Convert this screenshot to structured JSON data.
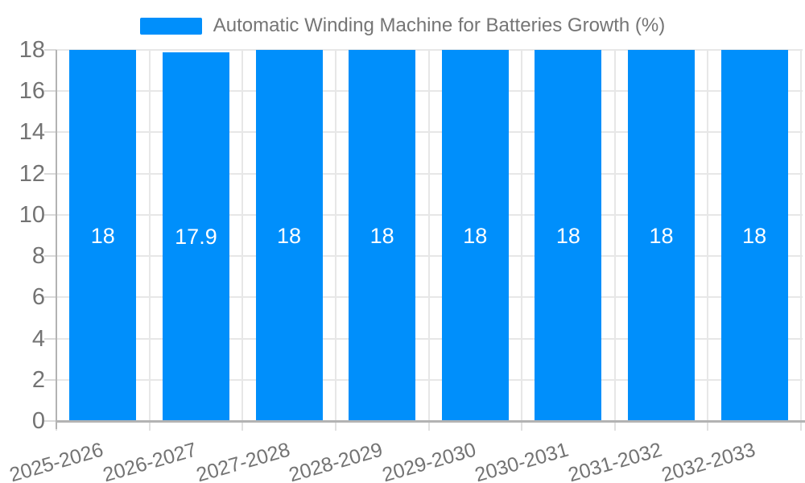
{
  "legend": {
    "label": "Automatic Winding Machine for Batteries Growth (%)",
    "marker": "bar-color-swatch-icon"
  },
  "chart_data": {
    "type": "bar",
    "title": "Automatic Winding Machine for Batteries Growth (%)",
    "xlabel": "",
    "ylabel": "",
    "categories": [
      "2025-2026",
      "2026-2027",
      "2027-2028",
      "2028-2029",
      "2029-2030",
      "2030-2031",
      "2031-2032",
      "2032-2033"
    ],
    "series": [
      {
        "name": "Automatic Winding Machine for Batteries Growth (%)",
        "values": [
          18,
          17.9,
          18,
          18,
          18,
          18,
          18,
          18
        ],
        "data_labels": [
          "18",
          "17.9",
          "18",
          "18",
          "18",
          "18",
          "18",
          "18"
        ]
      }
    ],
    "ylim": [
      0,
      18
    ],
    "ytick_step": 2,
    "ytick_labels": [
      "0",
      "2",
      "4",
      "6",
      "8",
      "10",
      "12",
      "14",
      "16",
      "18"
    ],
    "grid": true,
    "legend_position": "top",
    "xlabel_rotation_deg": -16,
    "colors": {
      "bar": "#008FFB",
      "grid": "#e7e7e7",
      "axis": "#b3b3b3",
      "tick": "#d9d9d9",
      "xtick": "#e0e0e0",
      "tick_label": "#737373",
      "legend_text": "#757575",
      "data_label": "#ffffff",
      "background": "#ffffff"
    }
  }
}
